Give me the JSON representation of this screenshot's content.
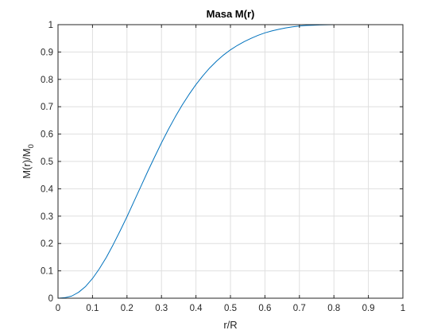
{
  "chart_data": {
    "type": "line",
    "title": "Masa M(r)",
    "xlabel": "r/R",
    "ylabel_main": "M(r)/M",
    "ylabel_sub": "0",
    "xlim": [
      0,
      1
    ],
    "ylim": [
      0,
      1
    ],
    "xticks": [
      0,
      0.1,
      0.2,
      0.3,
      0.4,
      0.5,
      0.6,
      0.7,
      0.8,
      0.9,
      1
    ],
    "xtick_labels": [
      "0",
      "0.1",
      "0.2",
      "0.3",
      "0.4",
      "0.5",
      "0.6",
      "0.7",
      "0.8",
      "0.9",
      "1"
    ],
    "yticks": [
      0,
      0.1,
      0.2,
      0.3,
      0.4,
      0.5,
      0.6,
      0.7,
      0.8,
      0.9,
      1
    ],
    "ytick_labels": [
      "0",
      "0.1",
      "0.2",
      "0.3",
      "0.4",
      "0.5",
      "0.6",
      "0.7",
      "0.8",
      "0.9",
      "1"
    ],
    "grid": true,
    "line_color": "#0072bd",
    "series": [
      {
        "x": [
          0,
          0.02,
          0.04,
          0.06,
          0.08,
          0.1,
          0.12,
          0.14,
          0.16,
          0.18,
          0.2,
          0.22,
          0.24,
          0.26,
          0.28,
          0.3,
          0.32,
          0.34,
          0.36,
          0.38,
          0.4,
          0.42,
          0.44,
          0.46,
          0.48,
          0.5,
          0.52,
          0.54,
          0.56,
          0.58,
          0.6,
          0.62,
          0.64,
          0.66,
          0.68,
          0.7,
          0.72,
          0.74,
          0.76,
          0.8,
          0.85,
          0.9,
          0.95,
          1
        ],
        "y": [
          0,
          0.002,
          0.008,
          0.022,
          0.043,
          0.072,
          0.108,
          0.149,
          0.196,
          0.246,
          0.298,
          0.353,
          0.408,
          0.463,
          0.516,
          0.568,
          0.617,
          0.663,
          0.706,
          0.745,
          0.781,
          0.813,
          0.842,
          0.867,
          0.889,
          0.908,
          0.924,
          0.938,
          0.95,
          0.961,
          0.97,
          0.977,
          0.983,
          0.988,
          0.992,
          0.995,
          0.997,
          0.998,
          0.999,
          1.0,
          1.0,
          1.0,
          1.0,
          1.0
        ]
      }
    ]
  }
}
